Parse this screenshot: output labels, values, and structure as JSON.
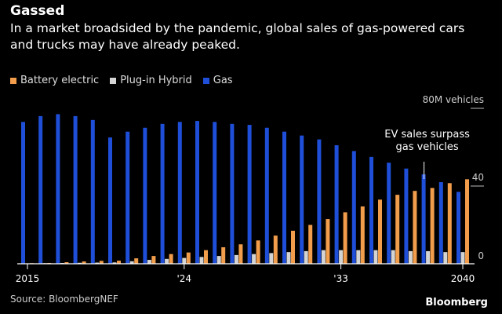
{
  "header": {
    "title": "Gassed",
    "subtitle": "In a market broadsided by the pandemic, global sales of gas-powered cars and trucks may have already peaked."
  },
  "legend": [
    {
      "name": "Battery electric",
      "color": "#f29d4b"
    },
    {
      "name": "Plug-in Hybrid",
      "color": "#d4d4d4"
    },
    {
      "name": "Gas",
      "color": "#1f4fd8"
    }
  ],
  "footer": {
    "source": "Source: BloombergNEF",
    "brand": "Bloomberg"
  },
  "chart_data": {
    "type": "bar",
    "title": "Gassed",
    "ylabel": "",
    "ylim": [
      0,
      80
    ],
    "y_unit_label": "80M vehicles",
    "y_ticks": [
      {
        "value": 80,
        "label": "80M vehicles"
      },
      {
        "value": 40,
        "label": "40"
      },
      {
        "value": 0,
        "label": "0"
      }
    ],
    "x_tick_labels": [
      {
        "year": 2015,
        "label": "2015"
      },
      {
        "year": 2024,
        "label": "'24"
      },
      {
        "year": 2033,
        "label": "'33"
      },
      {
        "year": 2040,
        "label": "2040"
      }
    ],
    "categories": [
      2015,
      2016,
      2017,
      2018,
      2019,
      2020,
      2021,
      2022,
      2023,
      2024,
      2025,
      2026,
      2027,
      2028,
      2029,
      2030,
      2031,
      2032,
      2033,
      2034,
      2035,
      2036,
      2037,
      2038,
      2039,
      2040
    ],
    "series": [
      {
        "name": "Battery electric",
        "color": "#f29d4b",
        "values": [
          0.3,
          0.4,
          0.8,
          1.2,
          1.5,
          1.6,
          2.8,
          4.0,
          5.0,
          5.8,
          7.0,
          8.5,
          10.0,
          12.0,
          14.5,
          17.0,
          20.0,
          23.0,
          26.5,
          29.5,
          33.0,
          35.5,
          37.5,
          39.0,
          41.5,
          43.5
        ]
      },
      {
        "name": "Plug-in Hybrid",
        "color": "#d4d4d4",
        "values": [
          0.2,
          0.3,
          0.4,
          0.5,
          0.6,
          0.7,
          1.3,
          2.0,
          2.5,
          3.0,
          3.5,
          4.0,
          4.5,
          5.0,
          5.5,
          6.0,
          6.5,
          7.0,
          7.0,
          7.0,
          7.0,
          7.0,
          6.5,
          6.5,
          6.0,
          6.0
        ]
      },
      {
        "name": "Gas",
        "color": "#1f4fd8",
        "values": [
          73.0,
          76.0,
          77.0,
          76.0,
          74.0,
          65.0,
          68.0,
          70.0,
          72.0,
          73.0,
          73.5,
          73.0,
          72.0,
          71.5,
          70.0,
          68.0,
          66.0,
          64.0,
          61.0,
          58.0,
          55.0,
          52.0,
          49.0,
          46.0,
          42.0,
          37.0
        ]
      }
    ],
    "annotation": {
      "text_lines": [
        "EV sales surpass",
        "gas vehicles"
      ],
      "year": 2038
    },
    "grid": false,
    "legend_position": "top-left"
  }
}
